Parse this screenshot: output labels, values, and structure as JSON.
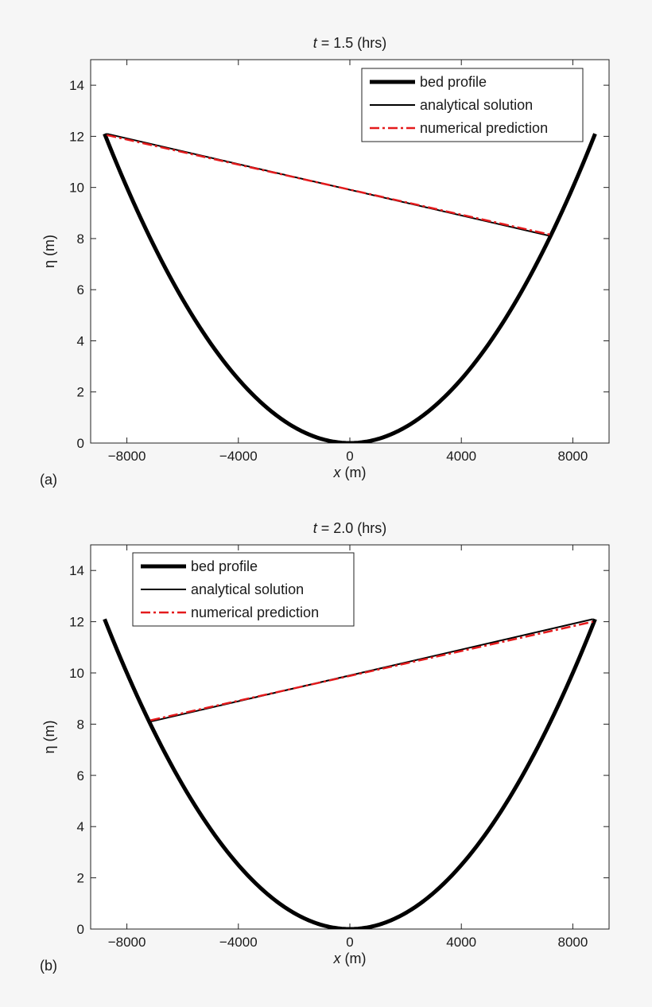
{
  "chart_data": [
    {
      "type": "line",
      "panel_label": "(a)",
      "title_var": "t",
      "title_rest": " = 1.5 (hrs)",
      "xlabel_var": "x",
      "xlabel_rest": " (m)",
      "ylabel": "η (m)",
      "xlim": [
        -9300,
        9300
      ],
      "ylim": [
        0,
        15
      ],
      "xticks": [
        -8000,
        -4000,
        0,
        4000,
        8000
      ],
      "xtick_labels": [
        "−8000",
        "−4000",
        "0",
        "4000",
        "8000"
      ],
      "yticks": [
        0,
        2,
        4,
        6,
        8,
        10,
        12,
        14
      ],
      "ytick_labels": [
        "0",
        "2",
        "4",
        "6",
        "8",
        "10",
        "12",
        "14"
      ],
      "grid": false,
      "legend_position": "top-right",
      "series": [
        {
          "name": "bed profile",
          "color": "#000000",
          "style": "thick",
          "kind": "parabola",
          "x_range": [
            -8800,
            8800
          ],
          "coef": 12.1,
          "half_width": 8800
        },
        {
          "name": "analytical solution",
          "color": "#000000",
          "style": "solid",
          "kind": "segment",
          "x": [
            -8720,
            7200
          ],
          "y": [
            12.1,
            8.1
          ]
        },
        {
          "name": "numerical prediction",
          "color": "#e41a1c",
          "style": "dashdot",
          "kind": "segment",
          "x": [
            -8720,
            7200
          ],
          "y": [
            12.05,
            8.15
          ]
        }
      ]
    },
    {
      "type": "line",
      "panel_label": "(b)",
      "title_var": "t",
      "title_rest": " = 2.0 (hrs)",
      "xlabel_var": "x",
      "xlabel_rest": " (m)",
      "ylabel": "η (m)",
      "xlim": [
        -9300,
        9300
      ],
      "ylim": [
        0,
        15
      ],
      "xticks": [
        -8000,
        -4000,
        0,
        4000,
        8000
      ],
      "xtick_labels": [
        "−8000",
        "−4000",
        "0",
        "4000",
        "8000"
      ],
      "yticks": [
        0,
        2,
        4,
        6,
        8,
        10,
        12,
        14
      ],
      "ytick_labels": [
        "0",
        "2",
        "4",
        "6",
        "8",
        "10",
        "12",
        "14"
      ],
      "grid": false,
      "legend_position": "top-left",
      "series": [
        {
          "name": "bed profile",
          "color": "#000000",
          "style": "thick",
          "kind": "parabola",
          "x_range": [
            -8800,
            8800
          ],
          "coef": 12.1,
          "half_width": 8800
        },
        {
          "name": "analytical solution",
          "color": "#000000",
          "style": "solid",
          "kind": "segment",
          "x": [
            -7150,
            8720
          ],
          "y": [
            8.1,
            12.1
          ]
        },
        {
          "name": "numerical prediction",
          "color": "#e41a1c",
          "style": "dashdot",
          "kind": "segment",
          "x": [
            -7150,
            8720
          ],
          "y": [
            8.15,
            12.0
          ]
        }
      ]
    }
  ]
}
